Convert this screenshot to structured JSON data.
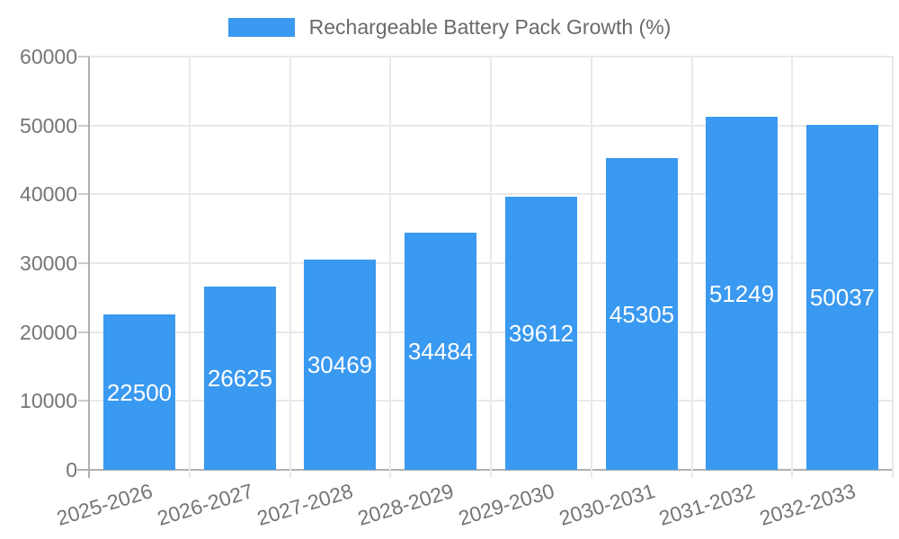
{
  "legend": {
    "label": "Rechargeable Battery Pack Growth (%)",
    "swatch_color": "#3A99F0"
  },
  "chart_data": {
    "type": "bar",
    "title": "Rechargeable Battery Pack Growth (%)",
    "categories": [
      "2025-2026",
      "2026-2027",
      "2027-2028",
      "2028-2029",
      "2029-2030",
      "2030-2031",
      "2031-2032",
      "2032-2033"
    ],
    "values": [
      22500,
      26625,
      30469,
      34484,
      39612,
      45305,
      51249,
      50037
    ],
    "xlabel": "",
    "ylabel": "",
    "ylim": [
      0,
      60000
    ],
    "yticks": [
      0,
      10000,
      20000,
      30000,
      40000,
      50000,
      60000
    ],
    "grid": true,
    "legend_position": "top",
    "bar_color": "#3A99F0",
    "bar_label_color": "#ffffff",
    "axis_text_color": "#757575",
    "gridline_color": "#e9e9e9",
    "axis_line_color": "#b0b0b0",
    "ytick_color": "#cccccc"
  }
}
